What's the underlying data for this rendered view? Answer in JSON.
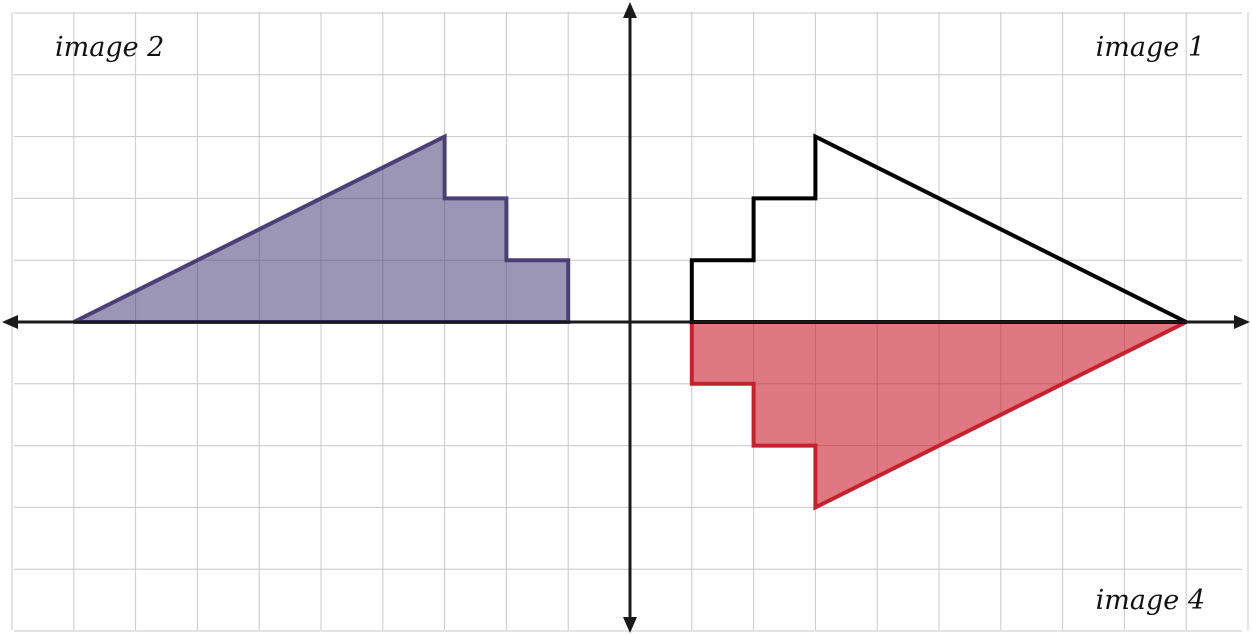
{
  "diagram": {
    "labels": {
      "image1": "image 1",
      "image2": "image 2",
      "image4": "image 4"
    },
    "grid": {
      "x_min": -10,
      "x_max": 10,
      "y_min": -5,
      "y_max": 5,
      "step": 1
    },
    "shapes": [
      {
        "id": "image-1",
        "vertices": [
          [
            1,
            0
          ],
          [
            1,
            1
          ],
          [
            2,
            1
          ],
          [
            2,
            2
          ],
          [
            3,
            2
          ],
          [
            3,
            3
          ],
          [
            9,
            0
          ]
        ],
        "stroke": "#000000",
        "fill": "none",
        "fill_opacity": 0
      },
      {
        "id": "image-2",
        "vertices": [
          [
            -1,
            0
          ],
          [
            -1,
            1
          ],
          [
            -2,
            1
          ],
          [
            -2,
            2
          ],
          [
            -3,
            2
          ],
          [
            -3,
            3
          ],
          [
            -9,
            0
          ]
        ],
        "stroke": "#4b3f7a",
        "fill": "#4b3f7a",
        "fill_opacity": 0.55
      },
      {
        "id": "image-4",
        "vertices": [
          [
            1,
            0
          ],
          [
            1,
            -1
          ],
          [
            2,
            -1
          ],
          [
            2,
            -2
          ],
          [
            3,
            -2
          ],
          [
            3,
            -3
          ],
          [
            9,
            0
          ]
        ],
        "stroke": "#c8202e",
        "fill": "#c8202e",
        "fill_opacity": 0.6
      }
    ],
    "colors": {
      "grid": "#c8c8c8",
      "axis": "#1a1a1a"
    }
  }
}
